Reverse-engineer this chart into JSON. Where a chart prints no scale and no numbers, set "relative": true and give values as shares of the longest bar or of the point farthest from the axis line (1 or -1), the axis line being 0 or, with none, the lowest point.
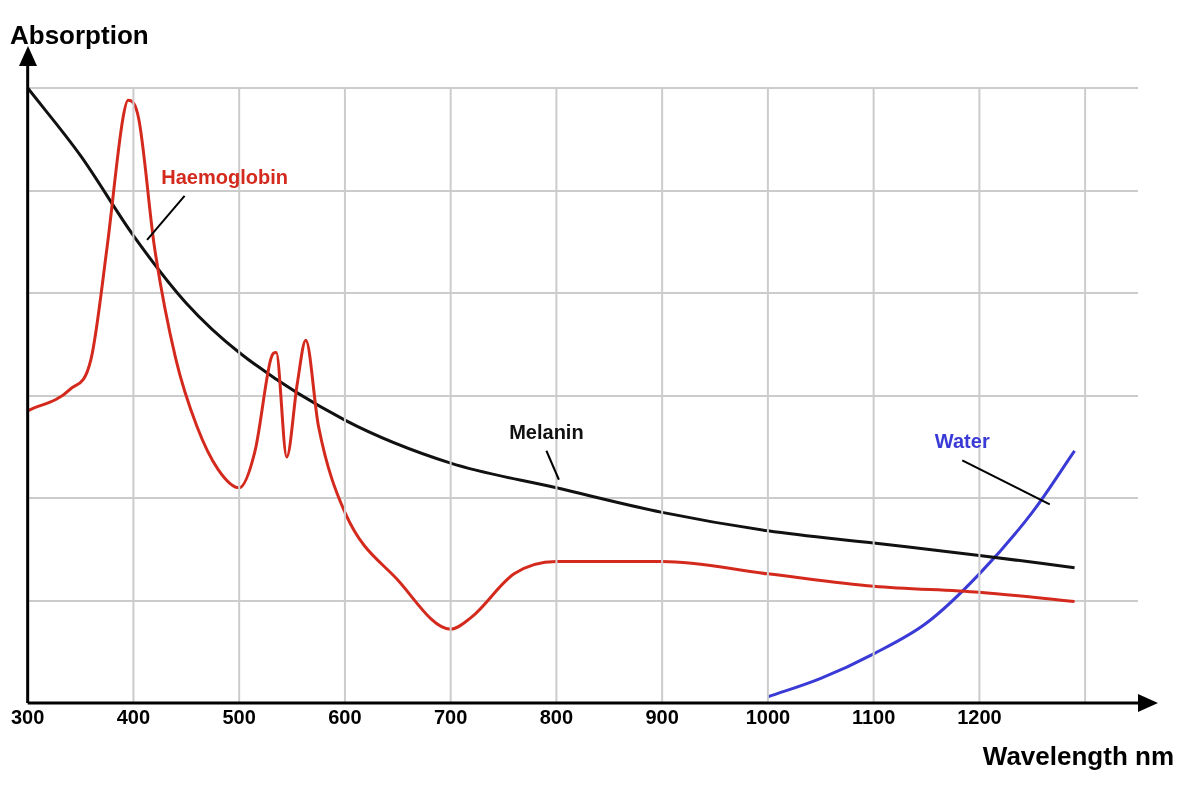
{
  "chart_data": {
    "type": "line",
    "relative": true,
    "xlabel": "Wavelength nm",
    "ylabel": "Absorption",
    "xlim": [
      300,
      1350
    ],
    "xticks": [
      300,
      400,
      500,
      600,
      700,
      800,
      900,
      1000,
      1100,
      1200,
      {
        "value": 1300,
        "label": null
      }
    ],
    "grid": true,
    "legend": false,
    "marker": "none",
    "line_style": "solid",
    "series": [
      {
        "name": "Haemoglobin",
        "color": "#d42a1e",
        "x": [
          300,
          340,
          360,
          375,
          390,
          395,
          405,
          420,
          440,
          460,
          480,
          500,
          515,
          530,
          535,
          545,
          555,
          563,
          575,
          600,
          650,
          700,
          720,
          760,
          800,
          850,
          900,
          1000,
          1100,
          1200,
          1290
        ],
        "values": [
          0.475,
          0.51,
          0.56,
          0.74,
          0.95,
          0.98,
          0.95,
          0.74,
          0.56,
          0.45,
          0.38,
          0.35,
          0.41,
          0.56,
          0.57,
          0.4,
          0.52,
          0.59,
          0.45,
          0.31,
          0.2,
          0.12,
          0.14,
          0.21,
          0.23,
          0.23,
          0.23,
          0.21,
          0.19,
          0.18,
          0.165
        ]
      },
      {
        "name": "Melanin",
        "color": "#111111",
        "x": [
          300,
          350,
          400,
          450,
          500,
          600,
          700,
          800,
          900,
          1000,
          1100,
          1200,
          1290
        ],
        "values": [
          1,
          0.89,
          0.76,
          0.65,
          0.57,
          0.46,
          0.39,
          0.35,
          0.31,
          0.28,
          0.26,
          0.24,
          0.22
        ]
      },
      {
        "name": "Water",
        "color": "#3a3ad6",
        "x": [
          1000,
          1050,
          1100,
          1150,
          1200,
          1250,
          1290
        ],
        "values": [
          0.01,
          0.04,
          0.08,
          0.13,
          0.21,
          0.31,
          0.41
        ]
      }
    ]
  }
}
